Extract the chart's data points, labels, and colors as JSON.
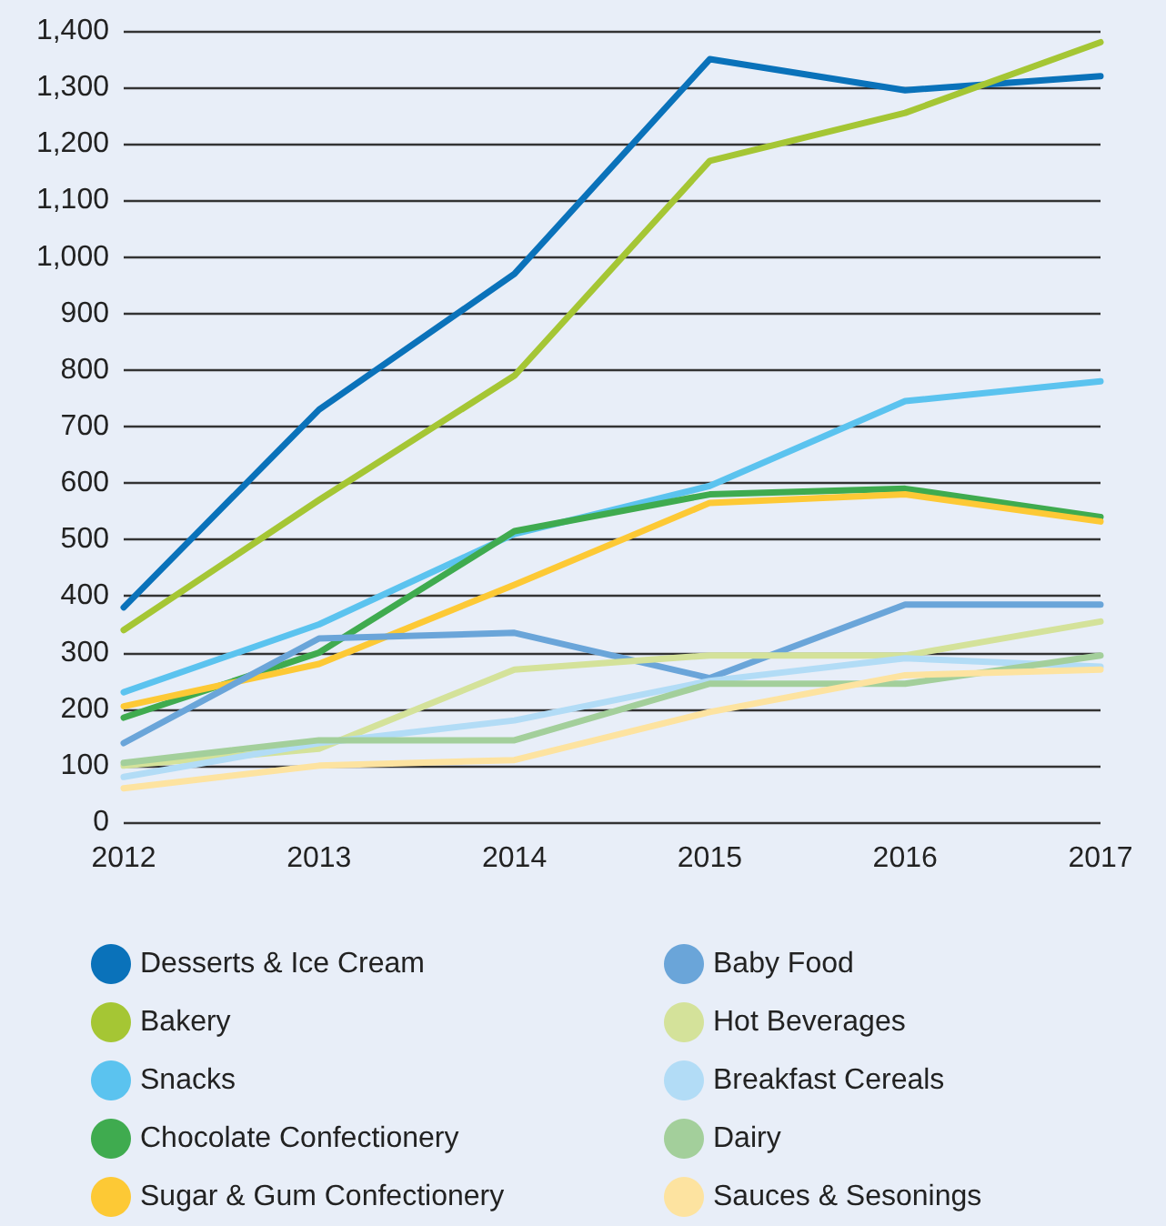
{
  "chart_data": {
    "type": "line",
    "categories": [
      "2012",
      "2013",
      "2014",
      "2015",
      "2016",
      "2017"
    ],
    "series": [
      {
        "name": "Desserts & Ice Cream",
        "color": "#0a72ba",
        "values": [
          380,
          730,
          970,
          1350,
          1295,
          1320
        ]
      },
      {
        "name": "Bakery",
        "color": "#a5c634",
        "values": [
          340,
          570,
          790,
          1170,
          1255,
          1380
        ]
      },
      {
        "name": "Snacks",
        "color": "#5bc3ef",
        "values": [
          230,
          350,
          510,
          595,
          745,
          780
        ]
      },
      {
        "name": "Chocolate Confectionery",
        "color": "#3fab4f",
        "values": [
          185,
          300,
          515,
          580,
          590,
          540
        ]
      },
      {
        "name": "Sugar & Gum Confectionery",
        "color": "#fdc935",
        "values": [
          205,
          280,
          420,
          565,
          580,
          532
        ]
      },
      {
        "name": "Baby Food",
        "color": "#6aa5d9",
        "values": [
          140,
          325,
          335,
          255,
          385,
          385
        ]
      },
      {
        "name": "Hot Beverages",
        "color": "#d4e29a",
        "values": [
          100,
          130,
          270,
          295,
          295,
          355
        ]
      },
      {
        "name": "Breakfast Cereals",
        "color": "#b2dcf6",
        "values": [
          80,
          140,
          180,
          250,
          290,
          275
        ]
      },
      {
        "name": "Dairy",
        "color": "#a3cf9b",
        "values": [
          105,
          145,
          145,
          245,
          245,
          295
        ]
      },
      {
        "name": "Sauces & Sesonings",
        "color": "#fde3a0",
        "values": [
          60,
          100,
          110,
          195,
          260,
          270
        ]
      }
    ],
    "ylim": [
      0,
      1400
    ],
    "yticks": [
      0,
      100,
      200,
      300,
      400,
      500,
      600,
      700,
      800,
      900,
      {
        "value": 1000,
        "label": "1,000"
      },
      {
        "value": 1100,
        "label": "1,100"
      },
      {
        "value": 1200,
        "label": "1,200"
      },
      {
        "value": 1300,
        "label": "1,300"
      },
      {
        "value": 1400,
        "label": "1,400"
      }
    ],
    "grid": "y",
    "legend": "bottom",
    "marker": "none",
    "line_style": "solid"
  }
}
